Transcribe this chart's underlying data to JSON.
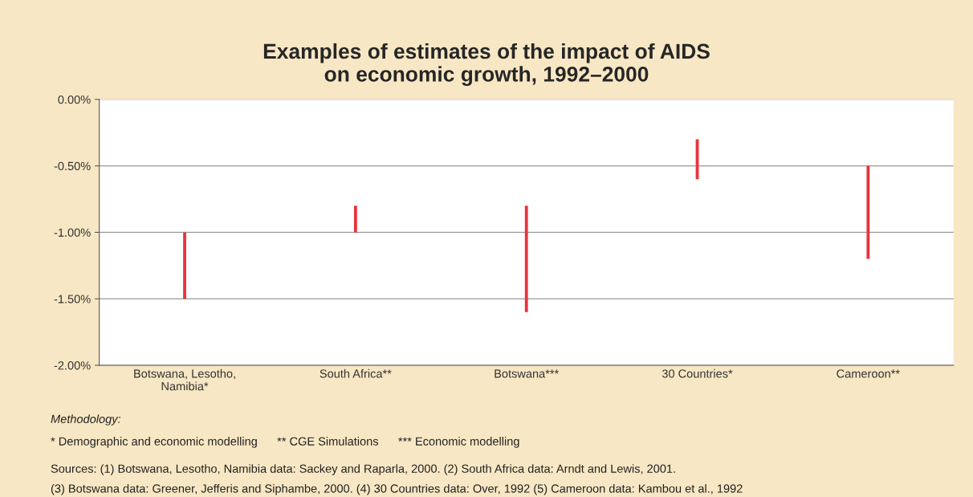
{
  "chart_data": {
    "type": "bar",
    "title": "Examples of estimates of the impact of AIDS\non economic growth, 1992–2000",
    "categories": [
      "Botswana, Lesotho,\nNamibia*",
      "South Africa**",
      "Botswana***",
      "30 Countries*",
      "Cameroon**"
    ],
    "base": [
      -1.0,
      -0.8,
      -0.8,
      -0.3,
      -0.5
    ],
    "values": [
      -0.5,
      -0.2,
      -0.8,
      -0.3,
      -0.7
    ],
    "color": "#e8333c",
    "ylim": [
      -2.0,
      0.0
    ],
    "yticks": [
      {
        "value": 0.0,
        "label": "0.00%"
      },
      {
        "value": -0.5,
        "label": "-0.50%"
      },
      {
        "value": -1.0,
        "label": "-1.00%"
      },
      {
        "value": -1.5,
        "label": "-1.50%"
      },
      {
        "value": -2.0,
        "label": "-2.00%"
      }
    ],
    "grid": "y",
    "annotations": [
      "Methodology:",
      "* Demographic and economic modelling      ** CGE Simulations      *** Economic modelling",
      "Sources: (1) Botswana, Lesotho, Namibia data: Sackey and Raparla, 2000. (2) South Africa data: Arndt and Lewis, 2001.",
      "(3) Botswana data: Greener, Jefferis and Siphambe, 2000. (4) 30 Countries data: Over, 1992 (5) Cameroon data: Kambou et al., 1992"
    ]
  }
}
